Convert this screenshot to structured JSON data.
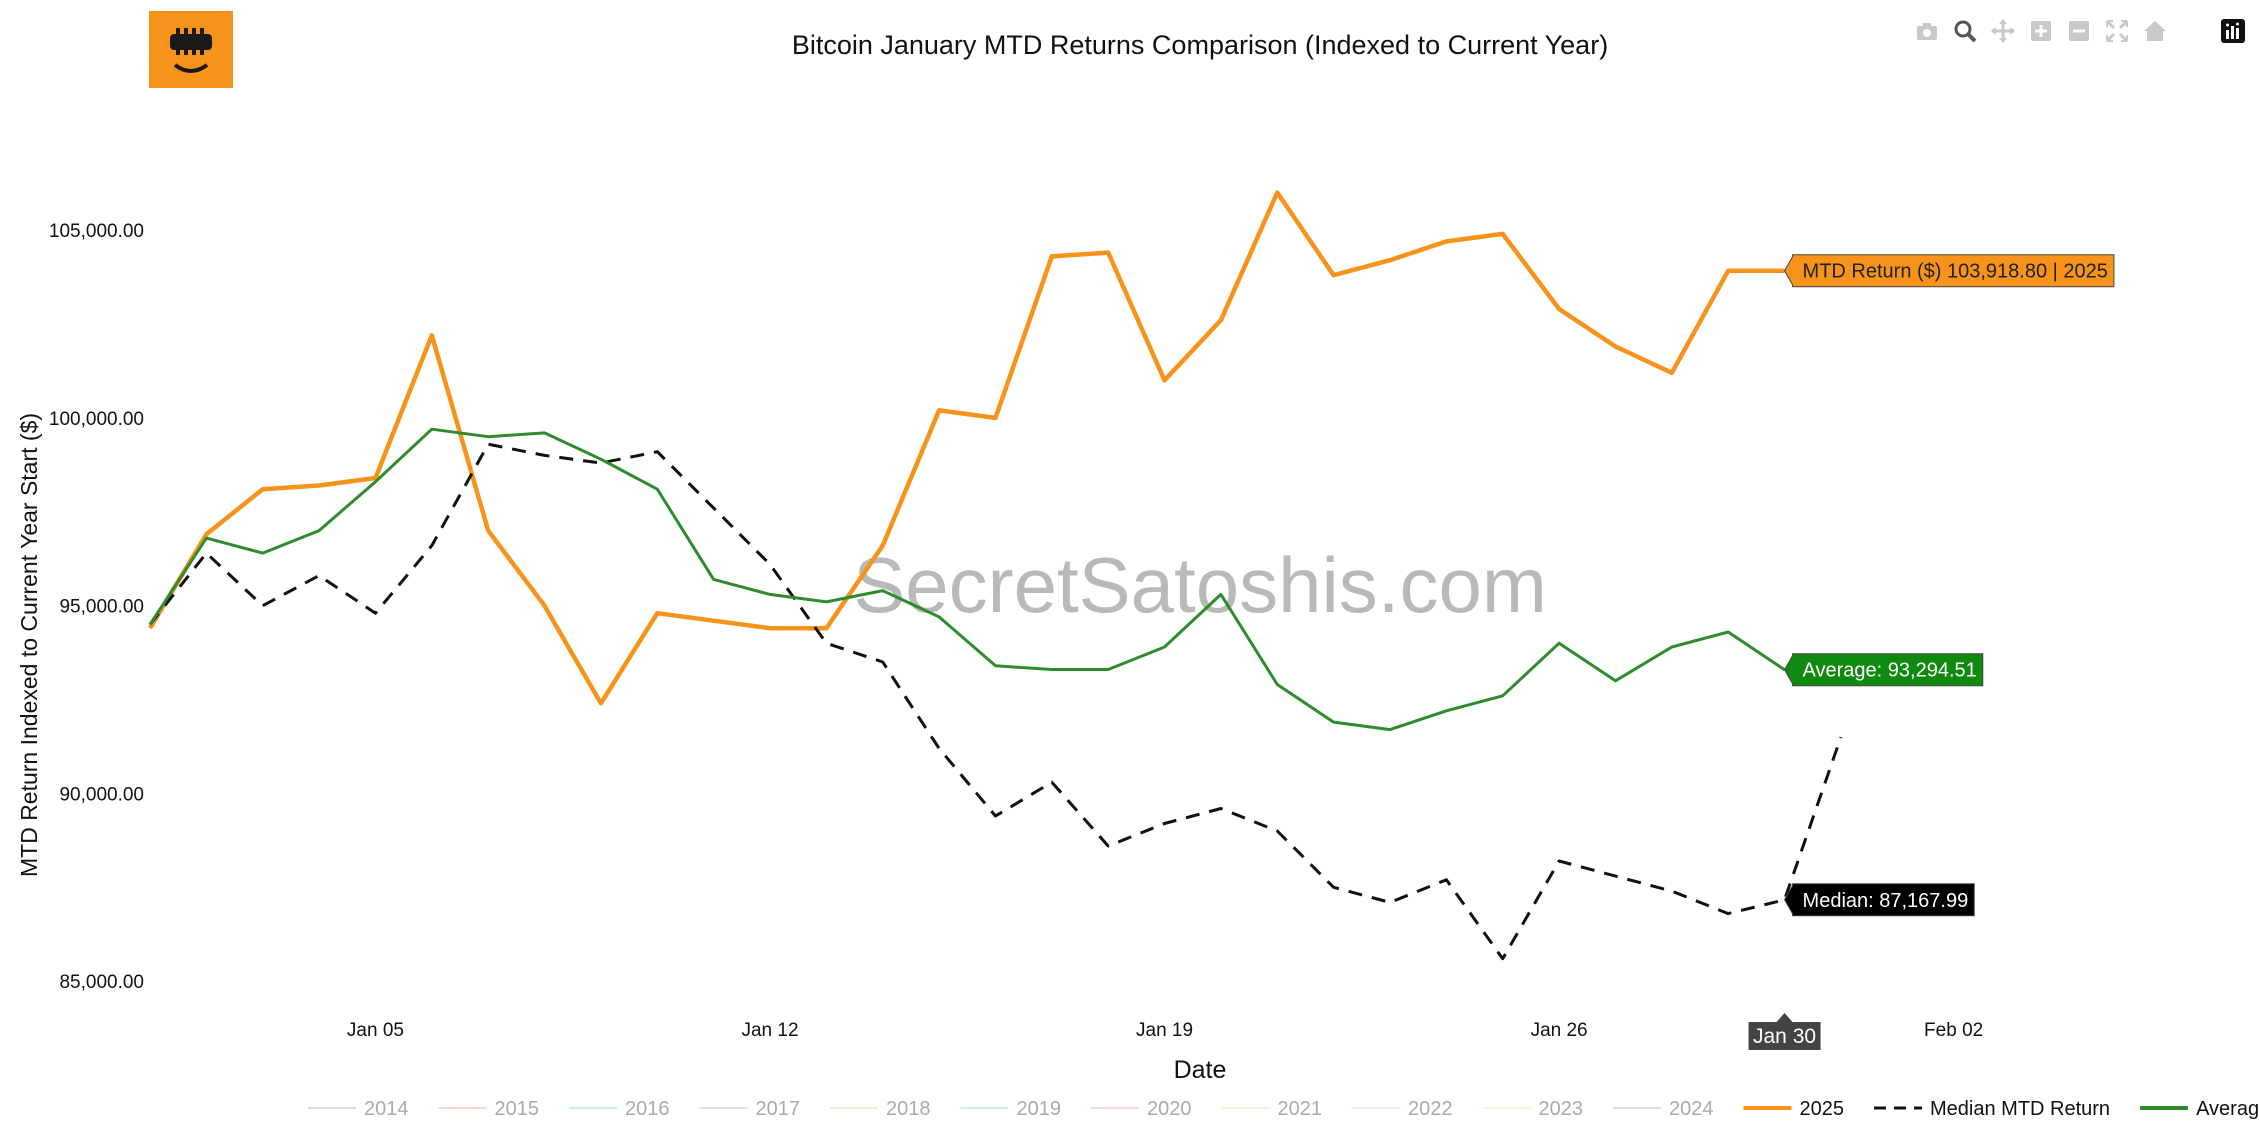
{
  "logo": {
    "name": "secret-satoshis-bitcoin-logo",
    "color": "#f7931a"
  },
  "toolbar": {
    "icons": [
      "camera-icon",
      "zoom-icon",
      "pan-icon",
      "zoom-in-icon",
      "zoom-out-icon",
      "autoscale-icon",
      "home-icon",
      "plotly-logo-icon"
    ]
  },
  "watermark": "SecretSatoshis.com",
  "chart_data": {
    "type": "line",
    "title": "Bitcoin January MTD Returns Comparison (Indexed to Current Year)",
    "xlabel": "Date",
    "ylabel": "MTD Return Indexed to Current Year Start ($)",
    "x_day_range": [
      1,
      34
    ],
    "ylim": [
      84500,
      107000
    ],
    "x_ticks": [
      {
        "day": 5,
        "label": "Jan 05"
      },
      {
        "day": 12,
        "label": "Jan 12"
      },
      {
        "day": 19,
        "label": "Jan 19"
      },
      {
        "day": 26,
        "label": "Jan 26"
      },
      {
        "day": 33,
        "label": "Feb 02"
      }
    ],
    "y_ticks": [
      {
        "value": 85000,
        "label": "85,000.00"
      },
      {
        "value": 90000,
        "label": "90,000.00"
      },
      {
        "value": 95000,
        "label": "95,000.00"
      },
      {
        "value": 100000,
        "label": "100,000.00"
      },
      {
        "value": 105000,
        "label": "105,000.00"
      }
    ],
    "series": [
      {
        "name": "2025",
        "color": "#f7931a",
        "dash": "solid",
        "width": 4.5,
        "x": [
          1,
          2,
          3,
          4,
          5,
          6,
          7,
          8,
          9,
          10,
          11,
          12,
          13,
          14,
          15,
          16,
          17,
          18,
          19,
          20,
          21,
          22,
          23,
          24,
          25,
          26,
          27,
          28,
          29,
          30
        ],
        "values": [
          94400,
          96900,
          98100,
          98200,
          98400,
          102200,
          97000,
          95000,
          92400,
          94800,
          94600,
          94400,
          94400,
          96600,
          100200,
          100000,
          104300,
          104400,
          101000,
          102600,
          106000,
          103800,
          104200,
          104700,
          104900,
          102900,
          101900,
          101200,
          103918.8,
          103918.8
        ]
      },
      {
        "name": "Median MTD Return",
        "color": "#111111",
        "dash": "dashed",
        "width": 3,
        "x": [
          1,
          2,
          3,
          4,
          5,
          6,
          7,
          8,
          9,
          10,
          11,
          12,
          13,
          14,
          15,
          16,
          17,
          18,
          19,
          20,
          21,
          22,
          23,
          24,
          25,
          26,
          27,
          28,
          29,
          30,
          31
        ],
        "values": [
          94500,
          96400,
          95000,
          95800,
          94800,
          96600,
          99300,
          99000,
          98800,
          99100,
          97600,
          96100,
          94000,
          93500,
          91200,
          89400,
          90300,
          88600,
          89200,
          89600,
          89000,
          87500,
          87100,
          87700,
          85600,
          88200,
          87800,
          87400,
          86800,
          87167.99,
          91500
        ]
      },
      {
        "name": "Average MTD Return",
        "color": "#2e8b2e",
        "dash": "solid",
        "width": 3,
        "x": [
          1,
          2,
          3,
          4,
          5,
          6,
          7,
          8,
          9,
          10,
          11,
          12,
          13,
          14,
          15,
          16,
          17,
          18,
          19,
          20,
          21,
          22,
          23,
          24,
          25,
          26,
          27,
          28,
          29,
          30
        ],
        "values": [
          94500,
          96800,
          96400,
          97000,
          98300,
          99700,
          99500,
          99600,
          98900,
          98100,
          95700,
          95300,
          95100,
          95400,
          94700,
          93400,
          93300,
          93300,
          93900,
          95300,
          92900,
          91900,
          91700,
          92200,
          92600,
          94000,
          93000,
          93900,
          94300,
          93294.51
        ]
      }
    ],
    "annotations": [
      {
        "series": "2025",
        "text": "MTD Return ($) 103,918.80 | 2025",
        "bg": "#f7931a",
        "fg": "#222222"
      },
      {
        "series": "Average MTD Return",
        "text": "Average: 93,294.51",
        "bg": "#0f8a0f",
        "fg": "#ffffff"
      },
      {
        "series": "Median MTD Return",
        "text": "Median: 87,167.99",
        "bg": "#000000",
        "fg": "#ffffff"
      }
    ],
    "hover_x_label": "Jan 30",
    "hover_x_day": 30,
    "legend": {
      "placement": "bottom",
      "items": [
        {
          "label": "2014",
          "color": "#6f6cd6",
          "style": "faded",
          "dash": "solid"
        },
        {
          "label": "2015",
          "color": "#e8694e",
          "style": "faded",
          "dash": "solid"
        },
        {
          "label": "2016",
          "color": "#2fc4a8",
          "style": "faded",
          "dash": "solid"
        },
        {
          "label": "2017",
          "color": "#9b6ee0",
          "style": "faded",
          "dash": "solid"
        },
        {
          "label": "2018",
          "color": "#f0a07a",
          "style": "faded",
          "dash": "solid"
        },
        {
          "label": "2019",
          "color": "#39b8e8",
          "style": "faded",
          "dash": "solid"
        },
        {
          "label": "2020",
          "color": "#f06a8e",
          "style": "faded",
          "dash": "solid"
        },
        {
          "label": "2021",
          "color": "#b5d989",
          "style": "faded",
          "dash": "solid"
        },
        {
          "label": "2022",
          "color": "#f29ac7",
          "style": "faded",
          "dash": "solid"
        },
        {
          "label": "2023",
          "color": "#f2c96a",
          "style": "faded",
          "dash": "solid"
        },
        {
          "label": "2024",
          "color": "#6f6cd6",
          "style": "faded",
          "dash": "solid"
        },
        {
          "label": "2025",
          "color": "#f7931a",
          "style": "bold",
          "dash": "solid"
        },
        {
          "label": "Median MTD Return",
          "color": "#111111",
          "style": "bold",
          "dash": "dashed"
        },
        {
          "label": "Average MTD Return",
          "color": "#2e8b2e",
          "style": "bold",
          "dash": "solid"
        }
      ]
    }
  }
}
